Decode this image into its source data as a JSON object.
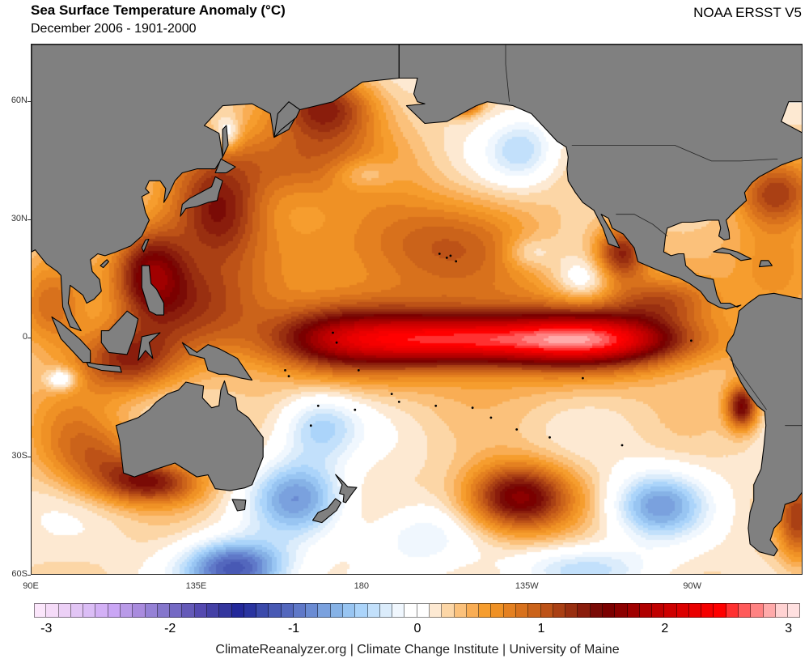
{
  "header": {
    "title": "Sea Surface Temperature Anomaly (°C)",
    "subtitle": "December 2006 - 1901-2000",
    "dataset": "NOAA ERSST V5"
  },
  "footer": {
    "credit": "ClimateReanalyzer.org | Climate Change Institute | University of Maine"
  },
  "map": {
    "projection": "equirectangular",
    "lon_range": [
      90,
      300
    ],
    "lat_range": [
      -60,
      74.5
    ],
    "land_color": "#808080",
    "lat_ticks": [
      {
        "value": 60,
        "label": "60N"
      },
      {
        "value": 30,
        "label": "30N"
      },
      {
        "value": 0,
        "label": "0"
      },
      {
        "value": -30,
        "label": "30S"
      },
      {
        "value": -60,
        "label": "60S"
      }
    ],
    "lon_ticks": [
      {
        "value": 90,
        "label": "90E"
      },
      {
        "value": 135,
        "label": "135E"
      },
      {
        "value": 180,
        "label": "180"
      },
      {
        "value": 225,
        "label": "135W"
      },
      {
        "value": 270,
        "label": "90W"
      }
    ],
    "anomaly_features": [
      {
        "name": "El Nino equatorial warm tongue",
        "lon": 205,
        "lat": 0,
        "value": 1.7,
        "sx": 22,
        "sy": 4.5
      },
      {
        "name": "El Nino eastern warm tongue",
        "lon": 245,
        "lat": 0,
        "value": 1.6,
        "sx": 18,
        "sy": 4.5
      },
      {
        "name": "Equatorial band west",
        "lon": 170,
        "lat": 0,
        "value": 0.9,
        "sx": 14,
        "sy": 6
      },
      {
        "name": "Equatorial broad warm",
        "lon": 215,
        "lat": 2,
        "value": 0.6,
        "sx": 45,
        "sy": 11
      },
      {
        "name": "Bering Sea warm",
        "lon": 170,
        "lat": 59,
        "value": 1.1,
        "sx": 10,
        "sy": 6
      },
      {
        "name": "Gulf of Alaska head warm",
        "lon": 207,
        "lat": 60,
        "value": 1.2,
        "sx": 3,
        "sy": 2
      },
      {
        "name": "North Pacific warm band",
        "lon": 160,
        "lat": 45,
        "value": 0.8,
        "sx": 18,
        "sy": 7
      },
      {
        "name": "Central North Pacific warm",
        "lon": 195,
        "lat": 25,
        "value": 0.75,
        "sx": 22,
        "sy": 9
      },
      {
        "name": "Kuroshio warm",
        "lon": 140,
        "lat": 32,
        "value": 1.1,
        "sx": 9,
        "sy": 9
      },
      {
        "name": "South China Sea warm",
        "lon": 122,
        "lat": 18,
        "value": 1.2,
        "sx": 7,
        "sy": 8
      },
      {
        "name": "Western Pacific warm pool",
        "lon": 135,
        "lat": 10,
        "value": 0.8,
        "sx": 14,
        "sy": 9
      },
      {
        "name": "Indonesia warm",
        "lon": 115,
        "lat": -5,
        "value": 1.0,
        "sx": 10,
        "sy": 6
      },
      {
        "name": "Indian Ocean warm",
        "lon": 95,
        "lat": 8,
        "value": 0.7,
        "sx": 7,
        "sy": 8
      },
      {
        "name": "South Australia warm",
        "lon": 122,
        "lat": -36,
        "value": 1.1,
        "sx": 10,
        "sy": 4
      },
      {
        "name": "West Australia warm",
        "lon": 108,
        "lat": -30,
        "value": 0.6,
        "sx": 10,
        "sy": 6
      },
      {
        "name": "Eastern Indian warm",
        "lon": 100,
        "lat": -20,
        "value": 0.35,
        "sx": 10,
        "sy": 8
      },
      {
        "name": "South Pacific warm blob",
        "lon": 222,
        "lat": -40,
        "value": 1.5,
        "sx": 10,
        "sy": 6
      },
      {
        "name": "Baja California warm",
        "lon": 250,
        "lat": 22,
        "value": 1.1,
        "sx": 5,
        "sy": 5
      },
      {
        "name": "Central America warm",
        "lon": 262,
        "lat": 10,
        "value": 0.6,
        "sx": 10,
        "sy": 4
      },
      {
        "name": "Caribbean warm",
        "lon": 293,
        "lat": 20,
        "value": 0.55,
        "sx": 9,
        "sy": 8
      },
      {
        "name": "US East Coast warm",
        "lon": 292,
        "lat": 37,
        "value": 0.9,
        "sx": 8,
        "sy": 6
      },
      {
        "name": "Peru coast warm",
        "lon": 283,
        "lat": -17,
        "value": 1.3,
        "sx": 3,
        "sy": 4
      },
      {
        "name": "Argentina shelf warm",
        "lon": 298,
        "lat": -45,
        "value": 0.9,
        "sx": 4,
        "sy": 8
      },
      {
        "name": "Northeast Pacific cool",
        "lon": 223,
        "lat": 48,
        "value": -0.55,
        "sx": 7,
        "sy": 6
      },
      {
        "name": "North Pacific cool small",
        "lon": 180,
        "lat": 42,
        "value": -0.4,
        "sx": 6,
        "sy": 3
      },
      {
        "name": "Subtropical east cool",
        "lon": 225,
        "lat": 22,
        "value": -0.35,
        "sx": 5,
        "sy": 3
      },
      {
        "name": "Subtropical east cool 2",
        "lon": 240,
        "lat": 15,
        "value": -0.45,
        "sx": 6,
        "sy": 4
      },
      {
        "name": "Okhotsk cool",
        "lon": 143,
        "lat": 52,
        "value": -0.5,
        "sx": 2.5,
        "sy": 3
      },
      {
        "name": "Coral Sea cool",
        "lon": 168,
        "lat": -22,
        "value": -0.65,
        "sx": 8,
        "sy": 6
      },
      {
        "name": "Tasman Sea cool",
        "lon": 162,
        "lat": -40,
        "value": -0.9,
        "sx": 9,
        "sy": 7
      },
      {
        "name": "Southern Ocean cool",
        "lon": 145,
        "lat": -58,
        "value": -1.35,
        "sx": 10,
        "sy": 5
      },
      {
        "name": "Southeast Pacific cool",
        "lon": 260,
        "lat": -42,
        "value": -0.9,
        "sx": 9,
        "sy": 6
      },
      {
        "name": "Southern cool band",
        "lon": 240,
        "lat": -58,
        "value": -0.5,
        "sx": 14,
        "sy": 4
      },
      {
        "name": "South Pacific cool central",
        "lon": 195,
        "lat": -50,
        "value": -0.4,
        "sx": 10,
        "sy": 6
      },
      {
        "name": "Indian south white",
        "lon": 98,
        "lat": -10,
        "value": -0.6,
        "sx": 3,
        "sy": 2
      }
    ]
  },
  "colorbar": {
    "min": -3.1,
    "max": 3.1,
    "step": 0.1,
    "labels": [
      {
        "value": -3,
        "label": "-3"
      },
      {
        "value": -2,
        "label": "-2"
      },
      {
        "value": -1,
        "label": "-1"
      },
      {
        "value": 0,
        "label": "0"
      },
      {
        "value": 1,
        "label": "1"
      },
      {
        "value": 2,
        "label": "2"
      },
      {
        "value": 3,
        "label": "3"
      }
    ],
    "colors": [
      "#fbe6fb",
      "#f5dbf8",
      "#ecd0f6",
      "#e2c5f5",
      "#dbbdf6",
      "#d3b0f6",
      "#caa6f5",
      "#b99ae8",
      "#a98bde",
      "#9581d6",
      "#8576cc",
      "#7469c4",
      "#6459b8",
      "#5449b0",
      "#4440a6",
      "#34369e",
      "#23289a",
      "#2a34a0",
      "#3b4aab",
      "#4859b4",
      "#5367bd",
      "#5f78c8",
      "#6a8bd3",
      "#7aa1de",
      "#86b2e6",
      "#98c5f2",
      "#abd4fa",
      "#c2e0fb",
      "#dbecfb",
      "#f0f7fe",
      "#ffffff",
      "#ffffff",
      "#fde9d2",
      "#fcd6a6",
      "#fbc17b",
      "#f9ad54",
      "#f69d2e",
      "#ef9125",
      "#e48020",
      "#d8711c",
      "#cb631a",
      "#bd5217",
      "#aa4014",
      "#992f10",
      "#8a1d0c",
      "#7a0b06",
      "#7b0000",
      "#8c0000",
      "#a00000",
      "#b00000",
      "#c00000",
      "#ce0000",
      "#dc0000",
      "#ea0000",
      "#f50000",
      "#ff0000",
      "#ff3030",
      "#ff5a5a",
      "#ff8282",
      "#ffaaaa",
      "#ffd2d2",
      "#ffe0e0"
    ]
  }
}
